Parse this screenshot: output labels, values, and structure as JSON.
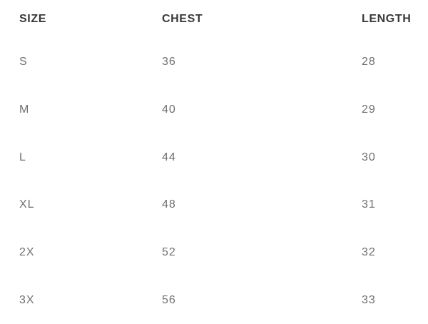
{
  "chart_data": {
    "type": "table",
    "columns": [
      "SIZE",
      "CHEST",
      "LENGTH"
    ],
    "rows": [
      [
        "S",
        36,
        28
      ],
      [
        "M",
        40,
        29
      ],
      [
        "L",
        44,
        30
      ],
      [
        "XL",
        48,
        31
      ],
      [
        "2X",
        52,
        32
      ],
      [
        "3X",
        56,
        33
      ]
    ],
    "layout": {
      "grid": "off",
      "header_position": "top"
    }
  },
  "colors": {
    "background": "#ffffff",
    "header_text": "#36393c",
    "body_text": "#6d7072"
  }
}
